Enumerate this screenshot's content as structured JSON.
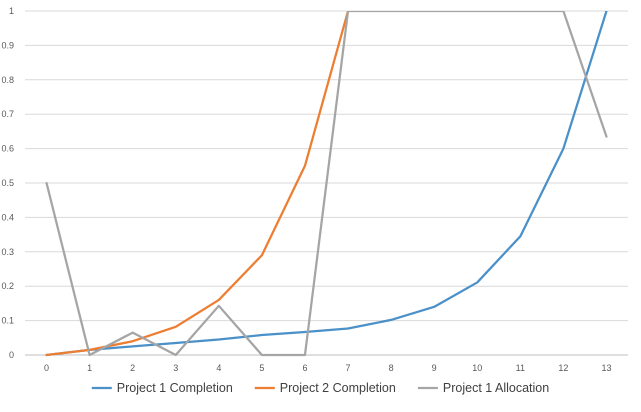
{
  "chart_data": {
    "type": "line",
    "title": "",
    "xlabel": "",
    "ylabel": "",
    "x": [
      0,
      1,
      2,
      3,
      4,
      5,
      6,
      7,
      8,
      9,
      10,
      11,
      12,
      13
    ],
    "ylim": [
      0,
      1
    ],
    "yticks": [
      0,
      0.1,
      0.2,
      0.3,
      0.4,
      0.5,
      0.6,
      0.7,
      0.8,
      0.9,
      1
    ],
    "ytick_labels": [
      "0",
      "0.1",
      "0.2",
      "0.3",
      "0.4",
      "0.5",
      "0.6",
      "0.7",
      "0.8",
      "0.9",
      "1"
    ],
    "xtick_labels": [
      "0",
      "1",
      "2",
      "3",
      "4",
      "5",
      "6",
      "7",
      "8",
      "9",
      "10",
      "11",
      "12",
      "13"
    ],
    "grid": "horizontal",
    "legend_position": "bottom",
    "series": [
      {
        "name": "Project 1 Completion",
        "color": "#4a90c9",
        "values": [
          0,
          0.015,
          0.025,
          0.035,
          0.045,
          0.058,
          0.067,
          0.077,
          0.102,
          0.14,
          0.211,
          0.345,
          0.6,
          1.0
        ]
      },
      {
        "name": "Project 2 Completion",
        "color": "#ed7d31",
        "values": [
          0,
          0.015,
          0.04,
          0.082,
          0.16,
          0.29,
          0.55,
          1.0,
          null,
          null,
          null,
          null,
          null,
          null
        ]
      },
      {
        "name": "Project 1 Allocation",
        "color": "#a5a5a5",
        "values": [
          0.5,
          0,
          0.065,
          0,
          0.143,
          0,
          0,
          1.0,
          1.0,
          1.0,
          1.0,
          1.0,
          1.0,
          0.635
        ]
      }
    ]
  }
}
